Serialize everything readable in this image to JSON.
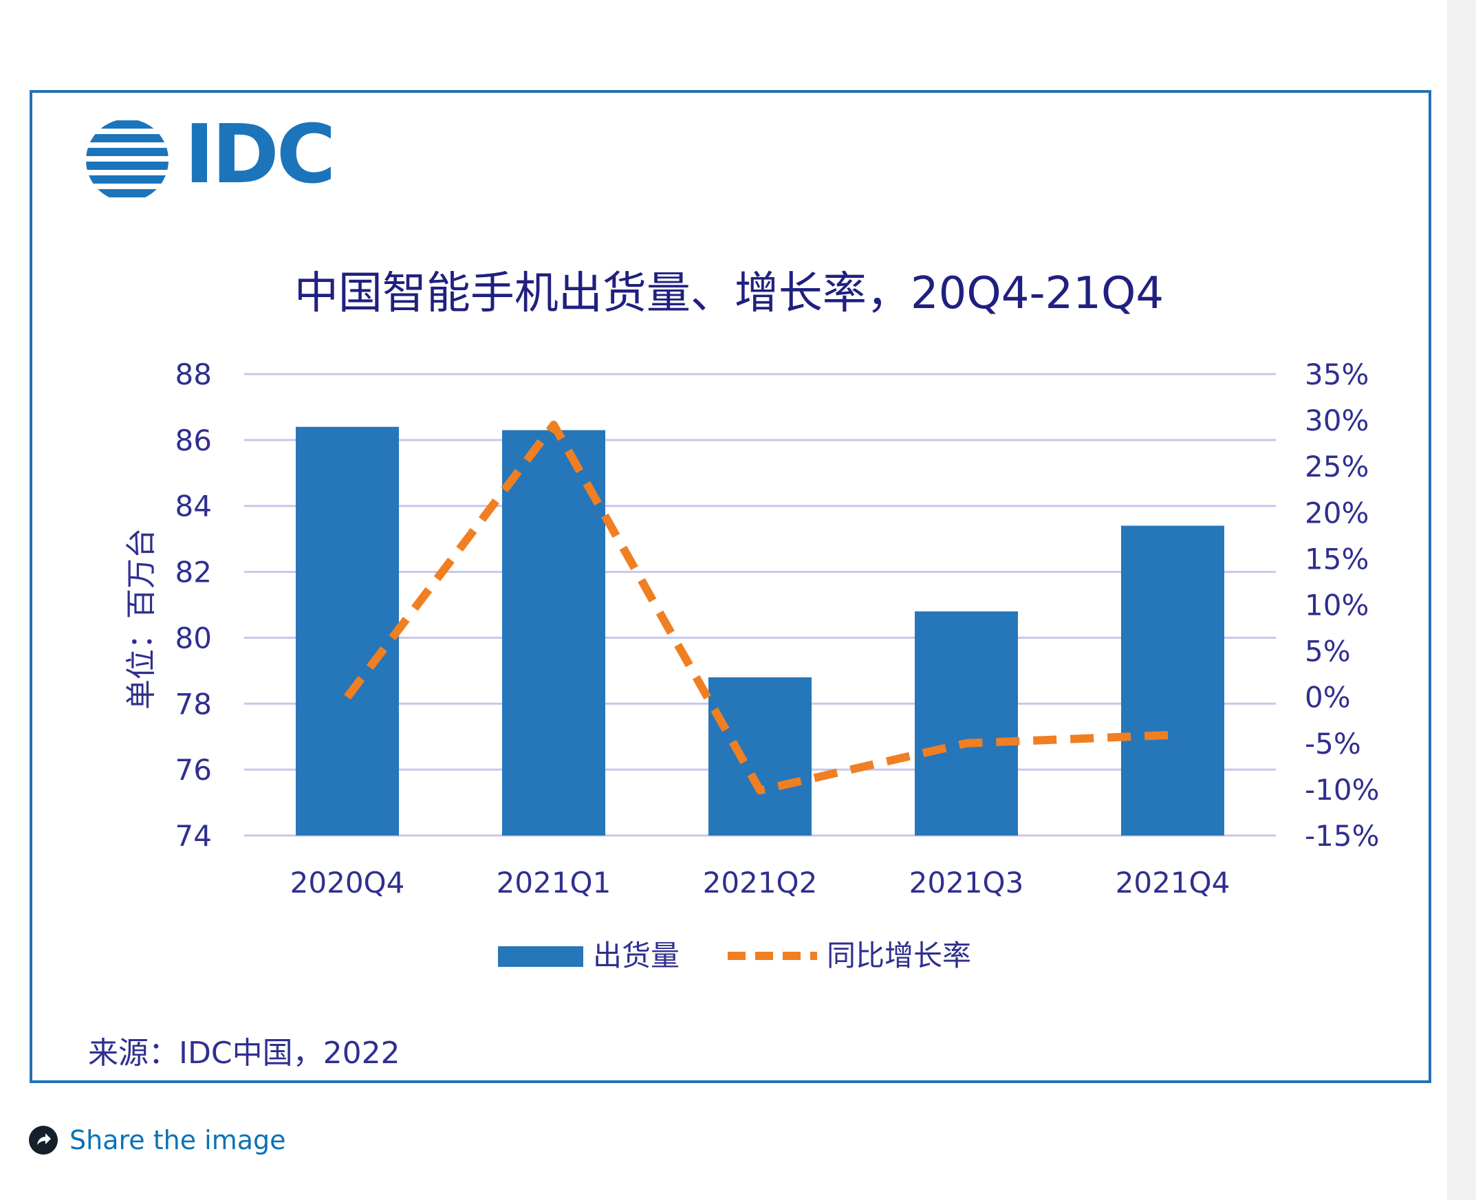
{
  "logo": {
    "text": "IDC",
    "color": "#1c74bb"
  },
  "chart_data": {
    "type": "bar",
    "title": "中国智能手机出货量、增长率，20Q4-21Q4",
    "ylabel": "单位：百万台",
    "categories": [
      "2020Q4",
      "2021Q1",
      "2021Q2",
      "2021Q3",
      "2021Q4"
    ],
    "series": [
      {
        "name": "出货量",
        "type": "bar",
        "axis": "left",
        "color": "#2676ba",
        "values": [
          86.4,
          86.3,
          78.8,
          80.8,
          83.4
        ]
      },
      {
        "name": "同比增长率",
        "type": "line",
        "style": "dashed",
        "axis": "right",
        "color": "#f07f22",
        "values": [
          0.0,
          29.5,
          -10.1,
          -5.0,
          -4.1
        ]
      }
    ],
    "ylim": [
      74,
      88
    ],
    "yticks": [
      74,
      76,
      78,
      80,
      82,
      84,
      86,
      88
    ],
    "y2lim": [
      -15,
      35
    ],
    "y2ticks": [
      "-15%",
      "-10%",
      "-5%",
      "0%",
      "5%",
      "10%",
      "15%",
      "20%",
      "25%",
      "30%",
      "35%"
    ],
    "grid": true,
    "legend": "bottom",
    "colors": {
      "text": "#2f2f8f",
      "title": "#202080",
      "grid": "#c6c6ee",
      "bar": "#2676ba",
      "line": "#f07f22"
    }
  },
  "source": "来源：IDC中国，2022",
  "share": {
    "label": "Share the image",
    "icon": "share-arrow-icon"
  }
}
